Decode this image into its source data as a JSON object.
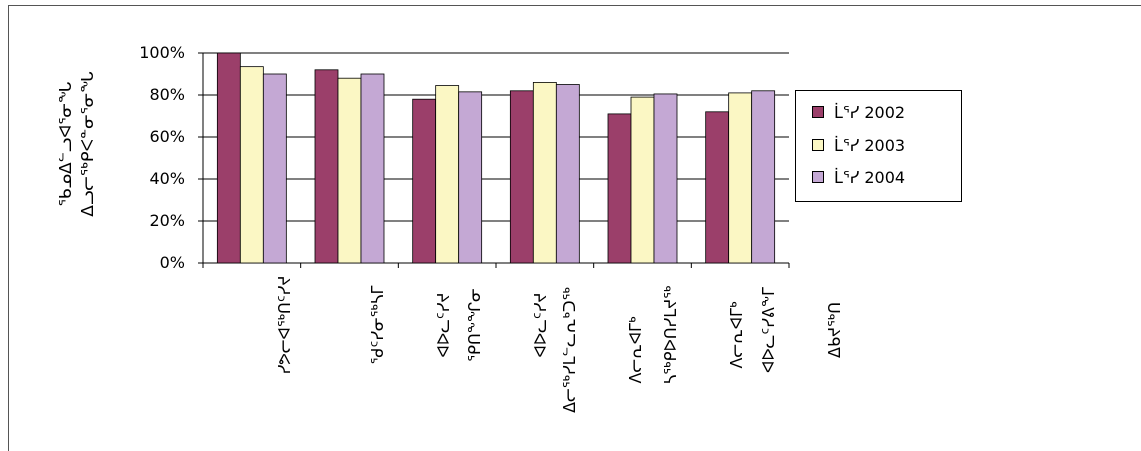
{
  "chart_data": {
    "type": "bar",
    "ylabel_lines": [
      "ᖃᓄᐃᓪᓗᐊᕐᓂᖓ",
      "ᐃᓗᓕᖅᑭᐸᓐᓂᕐᓂᖓ"
    ],
    "yticks": [
      "0%",
      "20%",
      "40%",
      "60%",
      "80%",
      "100%"
    ],
    "ylim": [
      0,
      100
    ],
    "categories": [
      [
        "ᓯᕗᓕᐊᖅᑎᑦᓯᔪ"
      ],
      [
        "ᖁᑦᓯᓂᖅᓴᒥ",
        "ᐊᐅᓚᑦᓯᔪ"
      ],
      [
        "ᕿᑎᖕᖏᓂ",
        "ᐊᐅᓚᑦᓯᔪ"
      ],
      [
        "ᐃᓕᖅᓯᒪᓪᓚᕆᒃᑐᖅ",
        "ᐱᓕᕆᐊᒥᒃ"
      ],
      [
        "ᓴᖅᑭᐅᑎᓯᒪᔪᖅ",
        "ᐱᓕᕆᐊᒥᒃ"
      ],
      [
        "ᐊᐅᓚᑦᓯᕕᖕᒥ",
        "ᐃᑲᔪᖅᑎ"
      ]
    ],
    "series": [
      {
        "name": "ᒫᕐᓯ 2002",
        "color": "#9b3f6a",
        "values": [
          100,
          92,
          78,
          82,
          71,
          72
        ]
      },
      {
        "name": "ᒫᕐᓯ 2003",
        "color": "#fbf7c4",
        "values": [
          93.5,
          88,
          84.5,
          86,
          79,
          81
        ]
      },
      {
        "name": "ᒫᕐᓯ 2004",
        "color": "#c4a8d4",
        "values": [
          90,
          90,
          81.5,
          85,
          80.5,
          82
        ]
      }
    ],
    "grid": true,
    "legend_position": "right"
  }
}
